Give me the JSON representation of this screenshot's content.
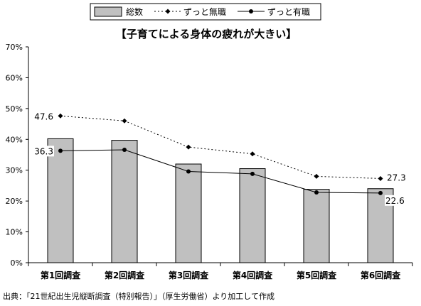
{
  "chart_data": {
    "type": "bar",
    "title": "【子育てによる身体の疲れが大きい】",
    "categories": [
      "第1回調査",
      "第2回調査",
      "第3回調査",
      "第4回調査",
      "第5回調査",
      "第6回調査"
    ],
    "ylim": [
      0,
      70
    ],
    "yticks": [
      "0%",
      "10%",
      "20%",
      "30%",
      "40%",
      "50%",
      "60%",
      "70%"
    ],
    "grid": false,
    "legend_position": "top",
    "series": [
      {
        "name": "総数",
        "kind": "bar",
        "color": "#c0c0c0",
        "values": [
          40.2,
          39.7,
          32.0,
          30.5,
          23.8,
          24.0
        ]
      },
      {
        "name": "ずっと無職",
        "kind": "line-dotted",
        "color": "#000000",
        "values": [
          47.6,
          46.0,
          37.5,
          35.3,
          28.0,
          27.3
        ],
        "data_labels": [
          "47.6",
          "",
          "",
          "",
          "",
          "27.3"
        ]
      },
      {
        "name": "ずっと有職",
        "kind": "line-solid",
        "color": "#000000",
        "values": [
          36.3,
          36.6,
          29.6,
          28.8,
          22.8,
          22.6
        ],
        "data_labels": [
          "36.3",
          "",
          "",
          "",
          "",
          "22.6"
        ]
      }
    ]
  },
  "source_note": "出典：「21世紀出生児縦断調査（特別報告）」（厚生労働省）より加工して作成"
}
